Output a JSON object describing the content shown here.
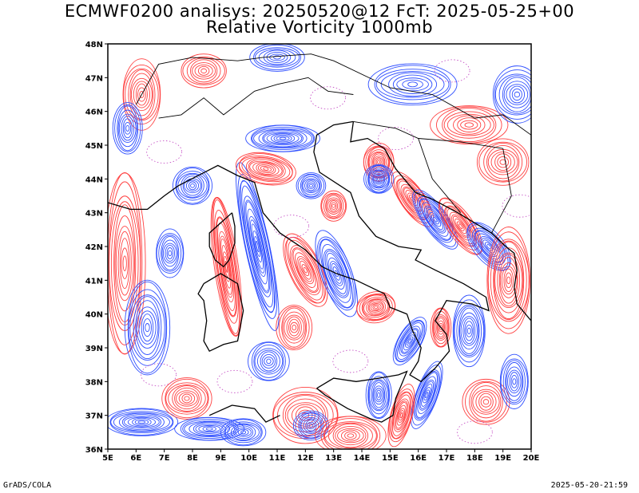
{
  "title_line1": "ECMWF0200 analisys: 20250520@12 FcT: 2025-05-25+00",
  "title_line2": "Relative Vorticity 1000mb",
  "map": {
    "lon_range": [
      5,
      20
    ],
    "lat_range": [
      36,
      48
    ],
    "lon_labels": [
      "5E",
      "6E",
      "7E",
      "8E",
      "9E",
      "10E",
      "11E",
      "12E",
      "13E",
      "14E",
      "15E",
      "16E",
      "17E",
      "18E",
      "19E",
      "20E"
    ],
    "lat_labels": [
      "36N",
      "37N",
      "38N",
      "39N",
      "40N",
      "41N",
      "42N",
      "43N",
      "44N",
      "45N",
      "46N",
      "47N",
      "48N"
    ],
    "colors": {
      "positive": "#ff4040",
      "negative": "#3050ff",
      "zero": "#c040c0",
      "coast": "#000000"
    }
  },
  "footer": {
    "left": "GrADS/COLA",
    "right": "2025-05-20-21:59"
  }
}
